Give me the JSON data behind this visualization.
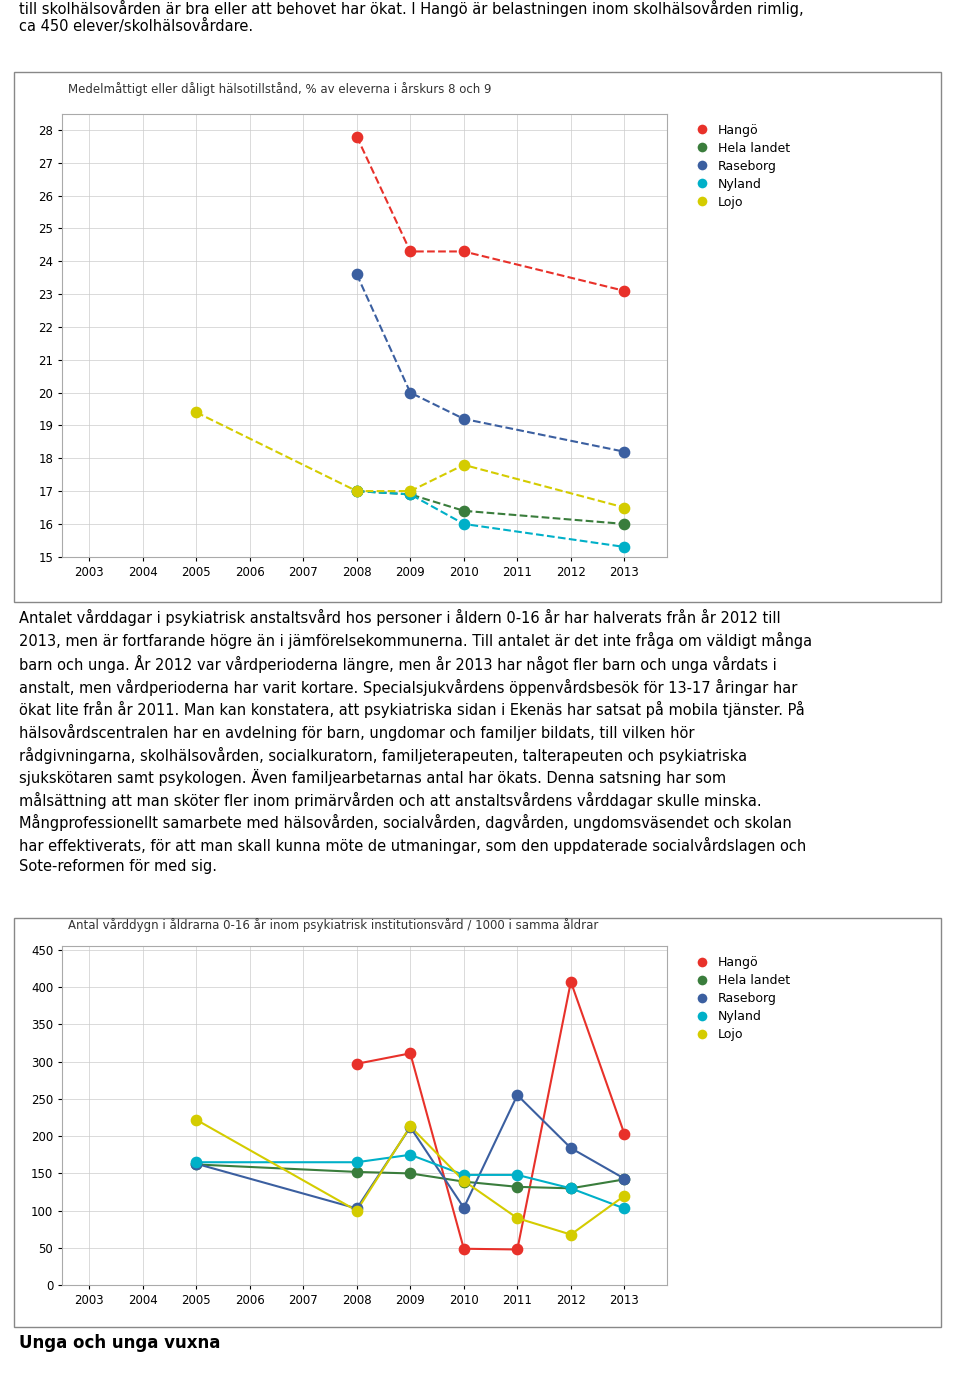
{
  "text_top": "till skolhälsovården är bra eller att behovet har ökat. I Hangö är belastningen inom skolhälsovården rimlig,\nca 450 elever/skolhälsovårdare.",
  "text_mid": "Antalet vårddagar i psykiatrisk anstaltsvård hos personer i åldern 0-16 år har halverats från år 2012 till\n2013, men är fortfarande högre än i jämförelsekommunerna. Till antalet är det inte fråga om väldigt många\nbarn och unga. År 2012 var vårdperioderna längre, men år 2013 har något fler barn och unga vårdats i\nanstalt, men vårdperioderna har varit kortare. Specialsjukvårdens öppenvårdsbesök för 13-17 åringar har\nökat lite från år 2011. Man kan konstatera, att psykiatriska sidan i Ekenäs har satsat på mobila tjänster. På\nhälsovårdscentralen har en avdelning för barn, ungdomar och familjer bildats, till vilken hör\nrådgivningarna, skolhälsovården, socialkuratorn, familjeterapeuten, talterapeuten och psykiatriska\nsjukskötaren samt psykologen. Även familjearbetarnas antal har ökats. Denna satsning har som\nmålsättning att man sköter fler inom primärvården och att anstaltsvårdens vårddagar skulle minska.\nMångprofessionellt samarbete med hälsovården, socialvården, dagvården, ungdomsväsendet och skolan\nhar effektiverats, för att man skall kunna möte de utmaningar, som den uppdaterade socialvårdslagen och\nSote-reformen för med sig.",
  "text_bottom": "Unga och unga vuxna",
  "chart1": {
    "title": "Medelmåttigt eller dåligt hälsotillstånd, % av eleverna i årskurs 8 och 9",
    "xlim": [
      2002.5,
      2013.8
    ],
    "ylim": [
      15,
      28.5
    ],
    "yticks": [
      15,
      16,
      17,
      18,
      19,
      20,
      21,
      22,
      23,
      24,
      25,
      26,
      27,
      28
    ],
    "xticks": [
      2003,
      2004,
      2005,
      2006,
      2007,
      2008,
      2009,
      2010,
      2011,
      2012,
      2013
    ],
    "series": {
      "Hangö": {
        "color": "#e8312a",
        "x": [
          2008,
          2009,
          2010,
          2013
        ],
        "y": [
          27.8,
          24.3,
          24.3,
          23.1
        ]
      },
      "Hela landet": {
        "color": "#3a7d3c",
        "x": [
          2008,
          2009,
          2010,
          2013
        ],
        "y": [
          17.0,
          16.9,
          16.4,
          16.0
        ]
      },
      "Raseborg": {
        "color": "#3b5fa0",
        "x": [
          2008,
          2009,
          2010,
          2013
        ],
        "y": [
          23.6,
          20.0,
          19.2,
          18.2
        ]
      },
      "Nyland": {
        "color": "#00b0c8",
        "x": [
          2008,
          2009,
          2010,
          2013
        ],
        "y": [
          17.0,
          16.9,
          16.0,
          15.3
        ]
      },
      "Lojo": {
        "color": "#d4cc00",
        "x": [
          2005,
          2008,
          2009,
          2010,
          2013
        ],
        "y": [
          19.4,
          17.0,
          17.0,
          17.8,
          16.5
        ]
      }
    }
  },
  "chart2": {
    "title": "Antal vårddygn i åldrarna 0-16 år inom psykiatrisk institutionsvård / 1000 i samma åldrar",
    "xlim": [
      2002.5,
      2013.8
    ],
    "ylim": [
      0,
      455
    ],
    "yticks": [
      0,
      50,
      100,
      150,
      200,
      250,
      300,
      350,
      400,
      450
    ],
    "xticks": [
      2003,
      2004,
      2005,
      2006,
      2007,
      2008,
      2009,
      2010,
      2011,
      2012,
      2013
    ],
    "series": {
      "Hangö": {
        "color": "#e8312a",
        "x": [
          2008,
          2009,
          2010,
          2011,
          2012,
          2013
        ],
        "y": [
          297,
          311,
          49,
          48,
          407,
          203
        ]
      },
      "Hela landet": {
        "color": "#3a7d3c",
        "x": [
          2005,
          2008,
          2009,
          2010,
          2011,
          2012,
          2013
        ],
        "y": [
          162,
          152,
          150,
          139,
          132,
          130,
          142
        ]
      },
      "Raseborg": {
        "color": "#3b5fa0",
        "x": [
          2005,
          2008,
          2009,
          2010,
          2011,
          2012,
          2013
        ],
        "y": [
          163,
          103,
          212,
          104,
          255,
          184,
          143
        ]
      },
      "Nyland": {
        "color": "#00b0c8",
        "x": [
          2005,
          2008,
          2009,
          2010,
          2011,
          2012,
          2013
        ],
        "y": [
          165,
          165,
          175,
          148,
          148,
          130,
          103
        ]
      },
      "Lojo": {
        "color": "#d4cc00",
        "x": [
          2005,
          2008,
          2009,
          2010,
          2011,
          2012,
          2013
        ],
        "y": [
          222,
          100,
          213,
          140,
          90,
          68,
          120
        ]
      }
    }
  },
  "legend_labels": [
    "Hangö",
    "Hela landet",
    "Raseborg",
    "Nyland",
    "Lojo"
  ],
  "legend_colors": [
    "#e8312a",
    "#3a7d3c",
    "#3b5fa0",
    "#00b0c8",
    "#d4cc00"
  ]
}
